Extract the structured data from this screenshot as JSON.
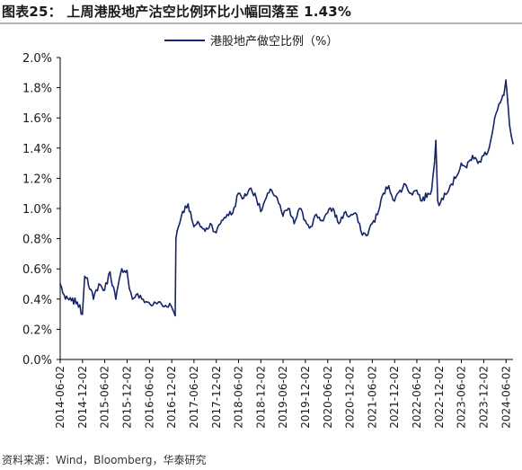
{
  "title": "图表25：  上周港股地产沽空比例环比小幅回落至 1.43%",
  "source": "资料来源：Wind，Bloomberg，华泰研究",
  "colors": {
    "series": "#16256b",
    "axis": "#000000",
    "title_rule": "#b3b3b3"
  },
  "chart_data": {
    "type": "line",
    "title": "",
    "xlabel": "",
    "ylabel": "",
    "grid": false,
    "legend": "top-center",
    "x_range": [
      "2014-06-02",
      "2024-07-29"
    ],
    "ylim": [
      0.0,
      2.0
    ],
    "y_ticks": [
      "2.0%",
      "1.8%",
      "1.6%",
      "1.4%",
      "1.2%",
      "1.0%",
      "0.8%",
      "0.6%",
      "0.4%",
      "0.2%",
      "0.0%"
    ],
    "x_tick_labels": [
      "2014-06-02",
      "2014-12-02",
      "2015-06-02",
      "2015-12-02",
      "2016-06-02",
      "2016-12-02",
      "2017-06-02",
      "2017-12-02",
      "2018-06-02",
      "2018-12-02",
      "2019-06-02",
      "2019-12-02",
      "2020-06-02",
      "2020-12-02",
      "2021-06-02",
      "2021-12-02",
      "2022-06-02",
      "2022-12-02",
      "2023-06-02",
      "2023-12-02",
      "2024-06-02"
    ],
    "series": [
      {
        "name": "港股地产做空比例（%）",
        "color": "#16256b",
        "x": [
          "2014-06-02",
          "2014-07-15",
          "2014-09-01",
          "2014-10-20",
          "2014-12-01",
          "2014-12-20",
          "2015-01-10",
          "2015-03-01",
          "2015-04-15",
          "2015-06-01",
          "2015-07-15",
          "2015-09-01",
          "2015-10-20",
          "2015-12-01",
          "2015-12-20",
          "2016-01-15",
          "2016-02-15",
          "2016-04-01",
          "2016-05-15",
          "2016-07-01",
          "2016-08-15",
          "2016-10-01",
          "2016-11-15",
          "2016-12-10",
          "2016-12-30",
          "2017-01-05",
          "2017-01-15",
          "2017-03-01",
          "2017-04-15",
          "2017-05-15",
          "2017-06-01",
          "2017-07-15",
          "2017-09-01",
          "2017-10-15",
          "2017-12-01",
          "2018-01-15",
          "2018-03-01",
          "2018-04-15",
          "2018-06-01",
          "2018-07-15",
          "2018-09-01",
          "2018-10-15",
          "2018-12-01",
          "2019-01-15",
          "2019-03-01",
          "2019-04-15",
          "2019-06-01",
          "2019-07-15",
          "2019-09-01",
          "2019-10-15",
          "2019-12-01",
          "2020-01-15",
          "2020-03-01",
          "2020-04-15",
          "2020-06-01",
          "2020-07-15",
          "2020-09-01",
          "2020-10-15",
          "2020-12-01",
          "2021-01-15",
          "2021-03-01",
          "2021-04-15",
          "2021-06-01",
          "2021-07-15",
          "2021-09-01",
          "2021-10-15",
          "2021-12-01",
          "2022-01-15",
          "2022-03-01",
          "2022-04-15",
          "2022-06-01",
          "2022-07-15",
          "2022-09-01",
          "2022-10-01",
          "2022-10-25",
          "2022-11-05",
          "2022-11-20",
          "2022-12-01",
          "2023-01-15",
          "2023-03-01",
          "2023-04-15",
          "2023-06-01",
          "2023-07-15",
          "2023-09-01",
          "2023-10-15",
          "2023-12-01",
          "2024-01-15",
          "2024-03-01",
          "2024-04-15",
          "2024-05-15",
          "2024-06-01",
          "2024-06-15",
          "2024-07-01",
          "2024-07-15",
          "2024-07-29"
        ],
        "values": [
          0.5,
          0.4,
          0.39,
          0.38,
          0.3,
          0.55,
          0.54,
          0.4,
          0.5,
          0.46,
          0.58,
          0.4,
          0.6,
          0.59,
          0.47,
          0.4,
          0.43,
          0.4,
          0.38,
          0.36,
          0.38,
          0.35,
          0.37,
          0.33,
          0.29,
          0.8,
          0.85,
          0.98,
          1.03,
          0.93,
          0.88,
          0.9,
          0.85,
          0.9,
          0.84,
          0.92,
          0.96,
          0.97,
          1.1,
          1.07,
          1.13,
          1.1,
          0.98,
          1.07,
          1.12,
          1.07,
          0.95,
          1.0,
          0.9,
          1.0,
          0.92,
          0.88,
          0.96,
          0.92,
          0.97,
          1.0,
          0.9,
          0.97,
          0.95,
          0.97,
          0.85,
          0.82,
          0.9,
          0.96,
          1.1,
          1.15,
          1.05,
          1.12,
          1.16,
          1.1,
          1.12,
          1.05,
          1.1,
          1.12,
          1.3,
          1.45,
          1.05,
          1.02,
          1.1,
          1.15,
          1.2,
          1.3,
          1.27,
          1.35,
          1.3,
          1.35,
          1.4,
          1.6,
          1.7,
          1.75,
          1.85,
          1.72,
          1.55,
          1.48,
          1.43
        ]
      }
    ]
  }
}
